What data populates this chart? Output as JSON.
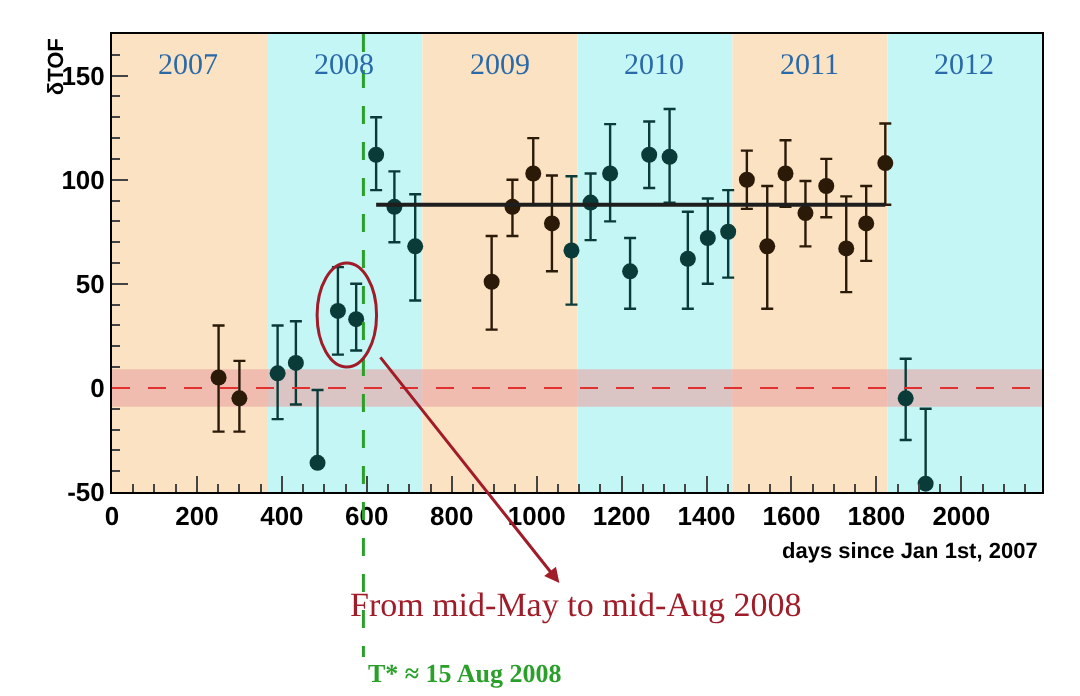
{
  "chart_data": {
    "type": "scatter",
    "xlabel": "days since Jan 1st, 2007",
    "ylabel": "δTOF",
    "xlim": [
      0,
      2190
    ],
    "xticks": [
      0,
      200,
      400,
      600,
      800,
      1000,
      1200,
      1400,
      1600,
      1800,
      2000
    ],
    "ylim": [
      -50,
      170
    ],
    "yticks": [
      -50,
      0,
      50,
      100,
      150
    ],
    "grid": false,
    "marker": "circle",
    "series": [
      {
        "x": [
          251,
          300,
          390,
          433,
          484,
          532,
          575,
          622,
          665,
          714,
          894,
          943,
          992,
          1036,
          1082,
          1127,
          1173,
          1220,
          1265,
          1313,
          1356,
          1403,
          1451,
          1495,
          1543,
          1586,
          1633,
          1682,
          1729,
          1776,
          1821,
          1869,
          1916
        ],
        "values": [
          5,
          -5,
          7,
          12,
          -36,
          37,
          33,
          112,
          87,
          68,
          51,
          87,
          103,
          79,
          66,
          89,
          103,
          56,
          112,
          111,
          62,
          72,
          75,
          100,
          68,
          103,
          84,
          97,
          67,
          79,
          108,
          -5,
          -46
        ],
        "errors": [
          [
            -21,
            30
          ],
          [
            -21,
            13
          ],
          [
            -15,
            30
          ],
          [
            -8,
            32
          ],
          [
            -36,
            -1
          ],
          [
            16,
            58
          ],
          [
            18,
            50
          ],
          [
            95,
            130
          ],
          [
            70,
            104
          ],
          [
            42,
            93
          ],
          [
            28,
            73
          ],
          [
            73,
            100
          ],
          [
            88,
            120
          ],
          [
            56,
            102
          ],
          [
            40,
            101.7
          ],
          [
            71,
            103
          ],
          [
            80,
            126.7
          ],
          [
            38,
            72
          ],
          [
            96,
            128
          ],
          [
            89,
            134
          ],
          [
            38,
            84.6
          ],
          [
            50,
            91
          ],
          [
            53,
            95
          ],
          [
            86,
            114
          ],
          [
            38,
            97
          ],
          [
            87,
            119
          ],
          [
            68,
            99.4
          ],
          [
            82,
            110
          ],
          [
            46,
            92
          ],
          [
            61,
            97
          ],
          [
            88,
            127
          ],
          [
            -25,
            14
          ],
          [
            -46,
            -10
          ]
        ],
        "xerrors": [
          10,
          10,
          10,
          10,
          10,
          10,
          10,
          10,
          10,
          10,
          10,
          10,
          10,
          10,
          10,
          10,
          10,
          10,
          10,
          10,
          10,
          10,
          10,
          10,
          10,
          10,
          10,
          10,
          10,
          10,
          10,
          10,
          10
        ],
        "colors": [
          "#2b1a08",
          "#2b1a08",
          "#0b3b38",
          "#0b3b38",
          "#0b3b38",
          "#0b3b38",
          "#0b3b38",
          "#0b3b38",
          "#0b3b38",
          "#0b3b38",
          "#2b1a08",
          "#2b1a08",
          "#2b1a08",
          "#2b1a08",
          "#0b3b38",
          "#0b3b38",
          "#0b3b38",
          "#0b3b38",
          "#0b3b38",
          "#0b3b38",
          "#0b3b38",
          "#0b3b38",
          "#0b3b38",
          "#2b1a08",
          "#2b1a08",
          "#2b1a08",
          "#2b1a08",
          "#2b1a08",
          "#2b1a08",
          "#2b1a08",
          "#2b1a08",
          "#0b3b38",
          "#0b3b38"
        ]
      },
      {
        "type": "line",
        "x": [
          622,
          1821
        ],
        "values": [
          88,
          88
        ],
        "color": "#1e1e1e",
        "marker": "none"
      }
    ],
    "bands": [
      {
        "axis": "x",
        "from": 0,
        "to": 365,
        "label": "2007",
        "color": "#fbe2c2"
      },
      {
        "axis": "x",
        "from": 365,
        "to": 731,
        "label": "2008",
        "color": "#c4f6f6"
      },
      {
        "axis": "x",
        "from": 731,
        "to": 1096,
        "label": "2009",
        "color": "#fbe2c2"
      },
      {
        "axis": "x",
        "from": 1096,
        "to": 1461,
        "label": "2010",
        "color": "#c4f6f6"
      },
      {
        "axis": "x",
        "from": 1461,
        "to": 1826,
        "label": "2011",
        "color": "#fbe2c2"
      },
      {
        "axis": "x",
        "from": 1826,
        "to": 2190,
        "label": "2012",
        "color": "#c4f6f6"
      },
      {
        "axis": "y",
        "from": -9,
        "to": 9,
        "color": "#e9a4a4"
      }
    ],
    "ref_lines": [
      {
        "axis": "y",
        "value": 0,
        "color": "#e03030",
        "line_style": "dashed"
      },
      {
        "axis": "x",
        "value": 592,
        "label": "T* ≈ 15 Aug 2008",
        "color": "#2aa02a",
        "line_style": "dashed"
      }
    ],
    "annotations": [
      {
        "text": "From mid-May to mid-Aug 2008",
        "x": 553,
        "y": 35
      }
    ]
  }
}
